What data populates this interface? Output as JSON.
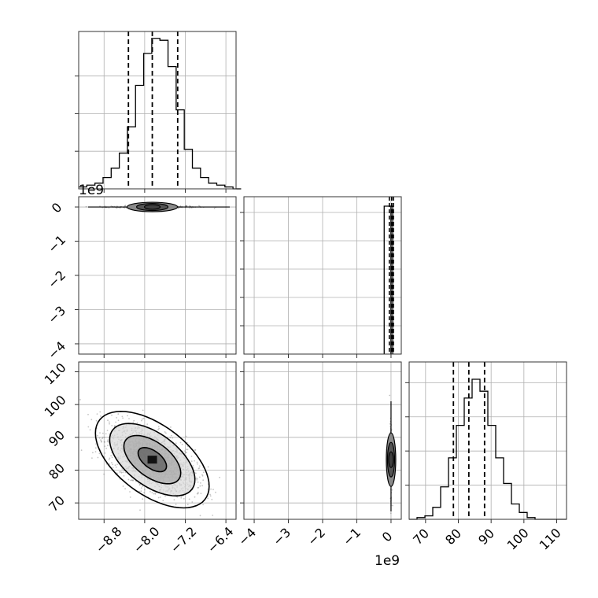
{
  "chart_data": {
    "type": "corner",
    "title": "",
    "parameters": [
      {
        "range": [
          -9.3,
          -6.2
        ],
        "tick_labels": [
          "−8.8",
          "−8.0",
          "−7.2",
          "−6.4"
        ],
        "tick_values": [
          -8.8,
          -8.0,
          -7.2,
          -6.4
        ],
        "quantile_lines": [
          -8.32,
          -7.85,
          -7.35
        ],
        "hist_bin_width": 0.16,
        "hist_bins_start": -9.3,
        "hist_counts": [
          1,
          2,
          3,
          6,
          11,
          19,
          33,
          55,
          72,
          80,
          79,
          65,
          42,
          21,
          11,
          6,
          3,
          2,
          1,
          0
        ]
      },
      {
        "range": [
          -4.3,
          0.3
        ],
        "offset_label": "1e9",
        "tick_labels": [
          "−4",
          "−3",
          "−2",
          "−1",
          "0"
        ],
        "tick_values": [
          -4,
          -3,
          -2,
          -1,
          0
        ],
        "quantile_lines": [
          -0.05,
          0.02,
          0.07
        ],
        "hist_bars": [
          {
            "x0": -0.2,
            "x1": 0.0,
            "count": 0.94
          },
          {
            "x0": 0.0,
            "x1": 0.05,
            "count": 0.94
          }
        ]
      },
      {
        "range": [
          65,
          113
        ],
        "tick_labels": [
          "70",
          "80",
          "90",
          "100",
          "110"
        ],
        "tick_values": [
          70,
          80,
          90,
          100,
          110
        ],
        "quantile_lines": [
          78.5,
          83.2,
          88.0
        ],
        "hist_bin_width": 2.4,
        "hist_bins_start": 65,
        "hist_counts": [
          0,
          1,
          2,
          7,
          19,
          36,
          55,
          71,
          82,
          75,
          55,
          36,
          21,
          9,
          4,
          1,
          0,
          0,
          0,
          0
        ]
      }
    ],
    "axis_labels": {
      "y_axis_2": [
        "0",
        "−1",
        "−2",
        "−3",
        "−4"
      ],
      "y_axis_3": [
        "70",
        "80",
        "90",
        "100",
        "110"
      ],
      "y_offset_label_2": "1e9",
      "x_offset_label_2": "1e9"
    },
    "joint_02": {
      "mean": [
        -7.85,
        83.2
      ],
      "sd": [
        0.35,
        4.6
      ],
      "rho": -0.55,
      "contour_levels_sigma": [
        0.5,
        1.0,
        1.5,
        2.0
      ]
    },
    "joint_01": {
      "center": [
        -7.85,
        0.0
      ],
      "half_width": [
        0.6,
        0.07
      ]
    },
    "joint_12": {
      "center": [
        0.0,
        83.2
      ],
      "half_width": [
        0.08,
        10
      ]
    },
    "grid": true,
    "colors": {
      "line": "#000000",
      "grid": "#b0b0b0",
      "points": "#7f7f7f",
      "fill_dark": "#404040"
    }
  }
}
